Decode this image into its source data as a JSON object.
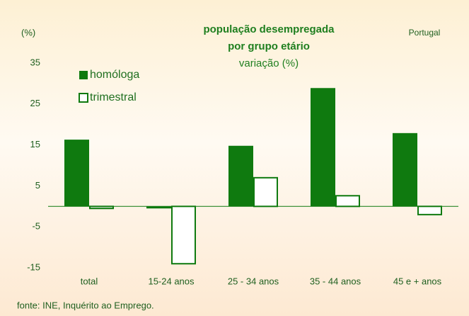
{
  "chart_data": {
    "type": "bar",
    "title": [
      "população desempregada",
      "por grupo etário"
    ],
    "subtitle": "variação (%)",
    "y_label": "(%)",
    "annotation": "Portugal",
    "source": "fonte: INE, Inquérito ao Emprego.",
    "categories": [
      "total",
      "15-24 anos",
      "25 - 34 anos",
      "35 - 44 anos",
      "45 e + anos"
    ],
    "series": [
      {
        "name": "homóloga",
        "color": "#0f7a0f",
        "style": "filled",
        "values": [
          16.3,
          -0.5,
          14.8,
          28.9,
          17.9
        ]
      },
      {
        "name": "trimestral",
        "color": "#0f7a0f",
        "style": "outline",
        "values": [
          -0.5,
          -14,
          7,
          2.6,
          -2
        ]
      }
    ],
    "ylim": [
      -15,
      35
    ],
    "yticks": [
      -15,
      -5,
      5,
      15,
      25,
      35
    ],
    "legend": "upper left",
    "grid": false
  }
}
